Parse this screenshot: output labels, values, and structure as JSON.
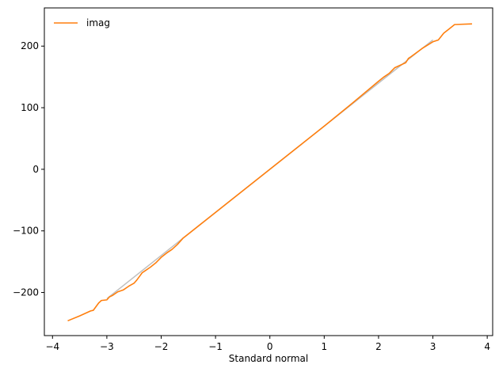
{
  "chart_data": {
    "type": "line",
    "title": "",
    "xlabel": "Standard normal",
    "ylabel": "",
    "xlim": [
      -4.15,
      4.1
    ],
    "ylim": [
      -270,
      262
    ],
    "xticks": [
      -4,
      -3,
      -2,
      -1,
      0,
      1,
      2,
      3,
      4
    ],
    "xtick_labels": [
      "−4",
      "−3",
      "−2",
      "−1",
      "0",
      "1",
      "2",
      "3",
      "4"
    ],
    "yticks": [
      -200,
      -100,
      0,
      100,
      200
    ],
    "ytick_labels": [
      "−200",
      "−100",
      "0",
      "100",
      "200"
    ],
    "grid": false,
    "legend": {
      "position": "top-left",
      "entries": [
        "imag"
      ]
    },
    "series": [
      {
        "name": "",
        "color": "#bfbfbf",
        "style": "reference",
        "x": [
          -3.0,
          3.0
        ],
        "y": [
          -210,
          210
        ]
      },
      {
        "name": "imag",
        "color": "#ff7f0e",
        "x": [
          -3.72,
          -3.5,
          -3.3,
          -3.25,
          -3.15,
          -3.1,
          -3.0,
          -2.95,
          -2.9,
          -2.8,
          -2.7,
          -2.6,
          -2.5,
          -2.45,
          -2.4,
          -2.35,
          -2.3,
          -2.2,
          -2.1,
          -2.0,
          -1.9,
          -1.8,
          -1.7,
          -1.6,
          -1.5,
          -1.0,
          -0.5,
          0.0,
          0.5,
          1.0,
          1.5,
          2.0,
          2.1,
          2.2,
          2.3,
          2.4,
          2.5,
          2.55,
          2.6,
          2.8,
          3.0,
          3.1,
          3.2,
          3.3,
          3.4,
          3.72
        ],
        "y": [
          -246,
          -238,
          -230,
          -229,
          -217,
          -213,
          -212,
          -207,
          -205,
          -199,
          -196,
          -190,
          -185,
          -180,
          -174,
          -168,
          -165,
          -159,
          -152,
          -143,
          -136,
          -130,
          -122,
          -112,
          -105,
          -70,
          -35,
          0,
          35,
          70,
          106,
          143,
          150,
          156,
          165,
          169,
          173,
          180,
          183,
          196,
          207,
          210,
          221,
          228,
          235,
          236
        ]
      }
    ]
  }
}
